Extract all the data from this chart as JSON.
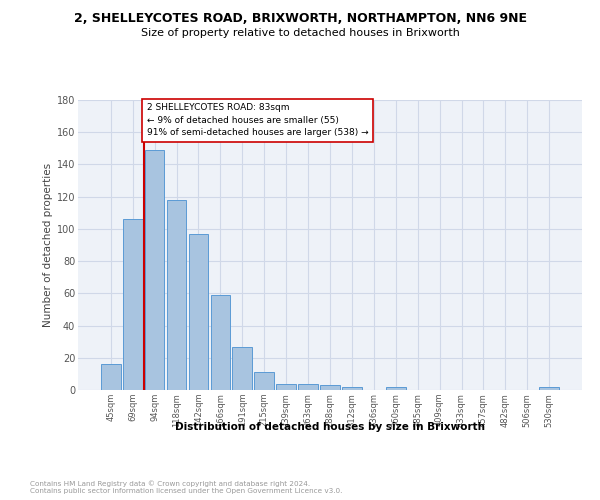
{
  "title_line1": "2, SHELLEYCOTES ROAD, BRIXWORTH, NORTHAMPTON, NN6 9NE",
  "title_line2": "Size of property relative to detached houses in Brixworth",
  "xlabel": "Distribution of detached houses by size in Brixworth",
  "ylabel": "Number of detached properties",
  "categories": [
    "45sqm",
    "69sqm",
    "94sqm",
    "118sqm",
    "142sqm",
    "166sqm",
    "191sqm",
    "215sqm",
    "239sqm",
    "263sqm",
    "288sqm",
    "312sqm",
    "336sqm",
    "360sqm",
    "385sqm",
    "409sqm",
    "433sqm",
    "457sqm",
    "482sqm",
    "506sqm",
    "530sqm"
  ],
  "values": [
    16,
    106,
    149,
    118,
    97,
    59,
    27,
    11,
    4,
    4,
    3,
    2,
    0,
    2,
    0,
    0,
    0,
    0,
    0,
    0,
    2
  ],
  "bar_color": "#a8c4e0",
  "bar_edge_color": "#5b9bd5",
  "grid_color": "#d0d8e8",
  "property_line_color": "#cc0000",
  "annotation_text": "2 SHELLEYCOTES ROAD: 83sqm\n← 9% of detached houses are smaller (55)\n91% of semi-detached houses are larger (538) →",
  "annotation_box_color": "#ffffff",
  "annotation_box_edge_color": "#cc0000",
  "ylim": [
    0,
    180
  ],
  "yticks": [
    0,
    20,
    40,
    60,
    80,
    100,
    120,
    140,
    160,
    180
  ],
  "footer_text": "Contains HM Land Registry data © Crown copyright and database right 2024.\nContains public sector information licensed under the Open Government Licence v3.0.",
  "bg_color": "#ffffff",
  "plot_bg_color": "#eef2f8"
}
